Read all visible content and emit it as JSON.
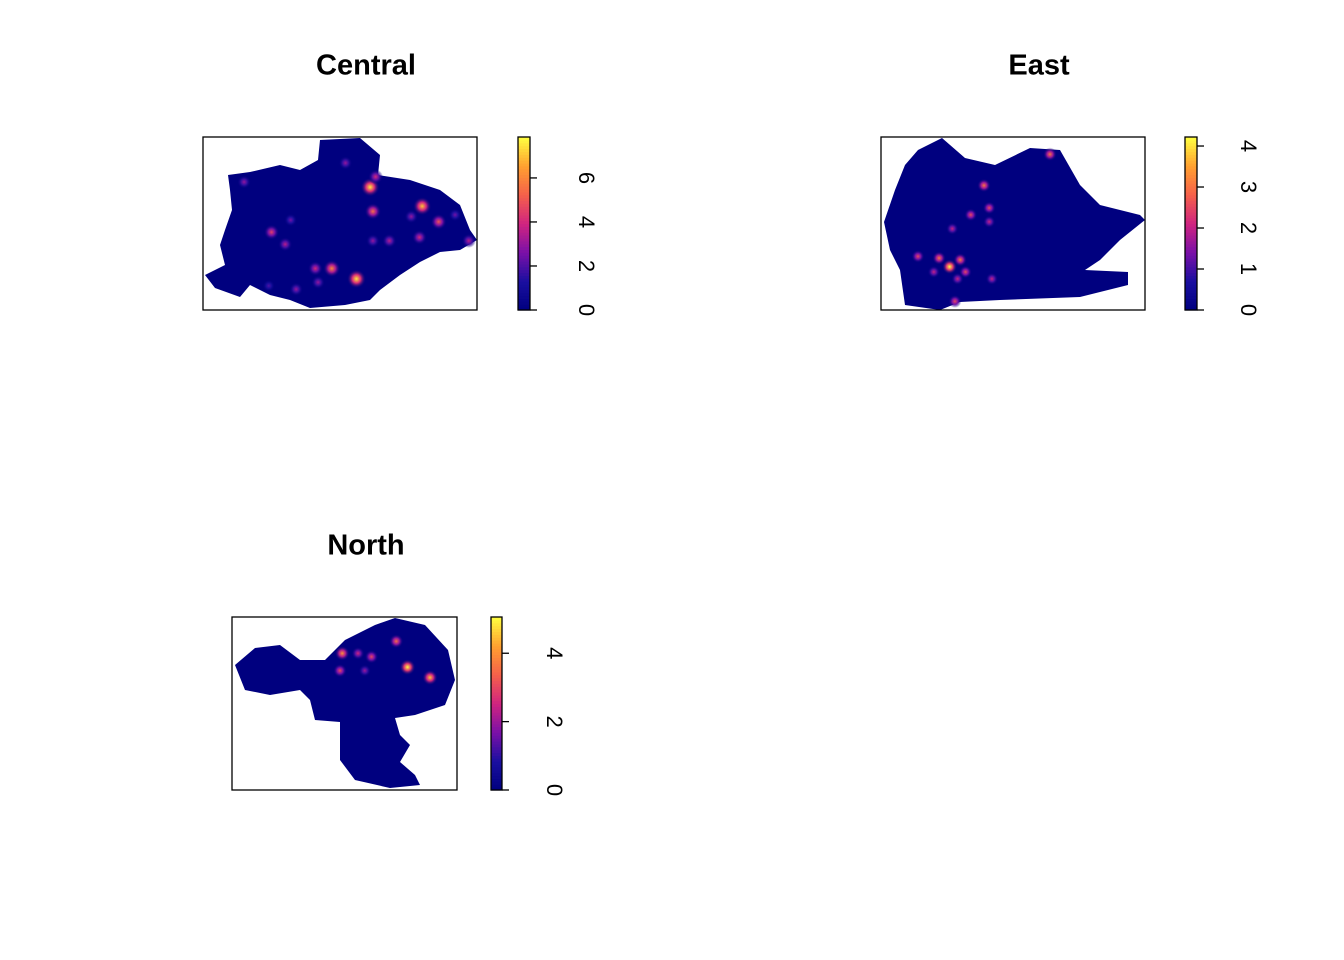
{
  "chart_data": [
    {
      "type": "density-map",
      "title": "Central",
      "colors": [
        "#00007f",
        "#1a0fa0",
        "#7a10a8",
        "#d02480",
        "#f5604a",
        "#ffa030",
        "#ffff40"
      ],
      "clim": [
        0,
        7.86
      ],
      "cticks": [
        0,
        2,
        4,
        6
      ],
      "xlim": [
        0,
        1
      ],
      "ylim": [
        1,
        0
      ],
      "x": [
        0.61,
        0.8,
        0.47,
        0.56,
        0.62,
        0.25,
        0.41,
        0.86,
        0.79,
        0.15,
        0.34,
        0.3,
        0.52,
        0.68,
        0.76,
        0.97,
        0.32,
        0.62,
        0.24,
        0.63,
        0.92,
        0.42
      ],
      "y": [
        0.29,
        0.4,
        0.76,
        0.82,
        0.43,
        0.55,
        0.76,
        0.49,
        0.58,
        0.26,
        0.88,
        0.62,
        0.15,
        0.6,
        0.46,
        0.6,
        0.48,
        0.6,
        0.86,
        0.23,
        0.45,
        0.84
      ],
      "values": [
        7.5,
        7,
        6,
        7.5,
        5.5,
        4.5,
        4,
        5,
        4,
        3,
        3,
        3.5,
        3,
        3.5,
        3,
        3.5,
        2.5,
        3,
        2,
        4,
        2.5,
        3
      ]
    },
    {
      "type": "density-map",
      "title": "East",
      "colors": [
        "#00007f",
        "#1a0fa0",
        "#7a10a8",
        "#d02480",
        "#f5604a",
        "#ffa030",
        "#ffff40"
      ],
      "clim": [
        0,
        4.22
      ],
      "cticks": [
        0,
        1,
        2,
        3,
        4
      ],
      "xlim": [
        0,
        1
      ],
      "ylim": [
        1,
        0
      ],
      "x": [
        0.26,
        0.39,
        0.64,
        0.41,
        0.34,
        0.27,
        0.14,
        0.22,
        0.3,
        0.32,
        0.29,
        0.42,
        0.2,
        0.41,
        0.28
      ],
      "y": [
        0.75,
        0.28,
        0.1,
        0.41,
        0.45,
        0.53,
        0.69,
        0.7,
        0.71,
        0.78,
        0.82,
        0.82,
        0.78,
        0.49,
        0.95
      ],
      "values": [
        4.2,
        3,
        3,
        2.5,
        2.5,
        2,
        2.5,
        3,
        3,
        2.5,
        2,
        2,
        2,
        2,
        2.5
      ]
    },
    {
      "type": "density-map",
      "title": "North",
      "colors": [
        "#00007f",
        "#1a0fa0",
        "#7a10a8",
        "#d02480",
        "#f5604a",
        "#ffa030",
        "#ffff40"
      ],
      "clim": [
        0,
        5.06
      ],
      "cticks": [
        0,
        2,
        4
      ],
      "xlim": [
        0,
        1
      ],
      "ylim": [
        1,
        0
      ],
      "x": [
        0.49,
        0.73,
        0.78,
        0.88,
        0.62,
        0.56,
        0.48,
        0.59
      ],
      "y": [
        0.21,
        0.14,
        0.29,
        0.35,
        0.23,
        0.21,
        0.31,
        0.31
      ],
      "values": [
        4,
        3.5,
        5,
        4.5,
        3,
        2.5,
        3,
        2
      ]
    }
  ]
}
